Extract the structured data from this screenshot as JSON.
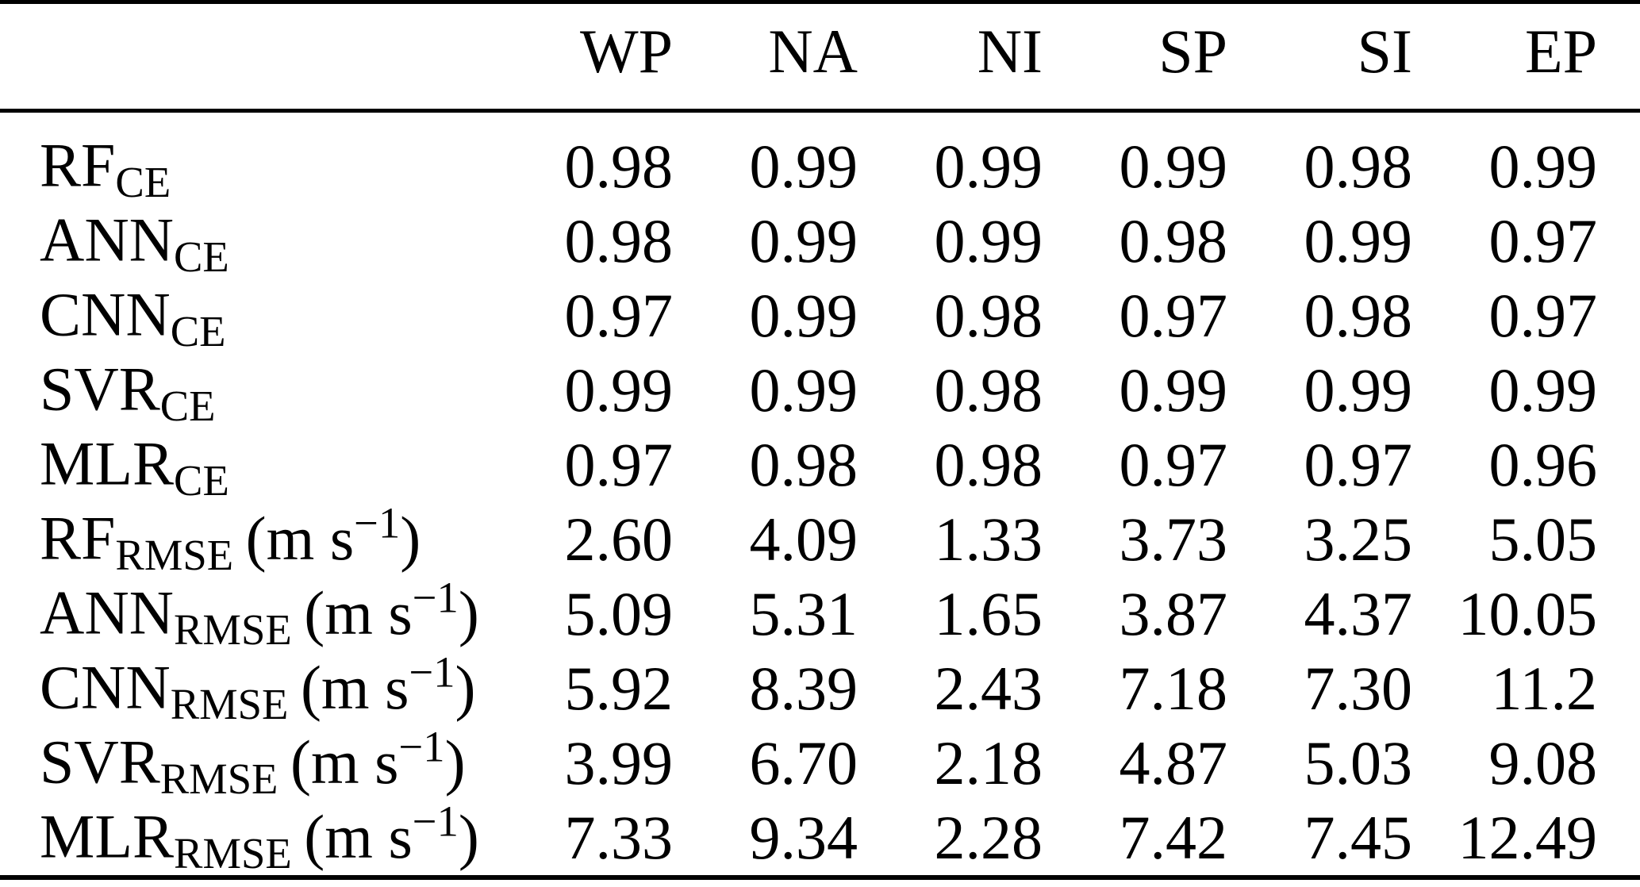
{
  "table": {
    "columns": [
      "WP",
      "NA",
      "NI",
      "SP",
      "SI",
      "EP"
    ],
    "rows": [
      {
        "base": "RF",
        "sub": "CE",
        "unit_pre": "",
        "unit_sup": "",
        "unit_post": "",
        "values": [
          "0.98",
          "0.99",
          "0.99",
          "0.99",
          "0.98",
          "0.99"
        ]
      },
      {
        "base": "ANN",
        "sub": "CE",
        "unit_pre": "",
        "unit_sup": "",
        "unit_post": "",
        "values": [
          "0.98",
          "0.99",
          "0.99",
          "0.98",
          "0.99",
          "0.97"
        ]
      },
      {
        "base": "CNN",
        "sub": "CE",
        "unit_pre": "",
        "unit_sup": "",
        "unit_post": "",
        "values": [
          "0.97",
          "0.99",
          "0.98",
          "0.97",
          "0.98",
          "0.97"
        ]
      },
      {
        "base": "SVR",
        "sub": "CE",
        "unit_pre": "",
        "unit_sup": "",
        "unit_post": "",
        "values": [
          "0.99",
          "0.99",
          "0.98",
          "0.99",
          "0.99",
          "0.99"
        ]
      },
      {
        "base": "MLR",
        "sub": "CE",
        "unit_pre": "",
        "unit_sup": "",
        "unit_post": "",
        "values": [
          "0.97",
          "0.98",
          "0.98",
          "0.97",
          "0.97",
          "0.96"
        ]
      },
      {
        "base": "RF",
        "sub": "RMSE",
        "unit_pre": "(m s",
        "unit_sup": "−1",
        "unit_post": ")",
        "values": [
          "2.60",
          "4.09",
          "1.33",
          "3.73",
          "3.25",
          "5.05"
        ]
      },
      {
        "base": "ANN",
        "sub": "RMSE",
        "unit_pre": "(m s",
        "unit_sup": "−1",
        "unit_post": ")",
        "values": [
          "5.09",
          "5.31",
          "1.65",
          "3.87",
          "4.37",
          "10.05"
        ]
      },
      {
        "base": "CNN",
        "sub": "RMSE",
        "unit_pre": "(m s",
        "unit_sup": "−1",
        "unit_post": ")",
        "values": [
          "5.92",
          "8.39",
          "2.43",
          "7.18",
          "7.30",
          "11.2"
        ]
      },
      {
        "base": "SVR",
        "sub": "RMSE",
        "unit_pre": "(m s",
        "unit_sup": "−1",
        "unit_post": ")",
        "values": [
          "3.99",
          "6.70",
          "2.18",
          "4.87",
          "5.03",
          "9.08"
        ]
      },
      {
        "base": "MLR",
        "sub": "RMSE",
        "unit_pre": "(m s",
        "unit_sup": "−1",
        "unit_post": ")",
        "values": [
          "7.33",
          "9.34",
          "2.28",
          "7.42",
          "7.45",
          "12.49"
        ]
      }
    ]
  },
  "chart_data": {
    "type": "table",
    "columns": [
      "",
      "WP",
      "NA",
      "NI",
      "SP",
      "SI",
      "EP"
    ],
    "rows": [
      [
        "RF_CE",
        0.98,
        0.99,
        0.99,
        0.99,
        0.98,
        0.99
      ],
      [
        "ANN_CE",
        0.98,
        0.99,
        0.99,
        0.98,
        0.99,
        0.97
      ],
      [
        "CNN_CE",
        0.97,
        0.99,
        0.98,
        0.97,
        0.98,
        0.97
      ],
      [
        "SVR_CE",
        0.99,
        0.99,
        0.98,
        0.99,
        0.99,
        0.99
      ],
      [
        "MLR_CE",
        0.97,
        0.98,
        0.98,
        0.97,
        0.97,
        0.96
      ],
      [
        "RF_RMSE (m s^-1)",
        2.6,
        4.09,
        1.33,
        3.73,
        3.25,
        5.05
      ],
      [
        "ANN_RMSE (m s^-1)",
        5.09,
        5.31,
        1.65,
        3.87,
        4.37,
        10.05
      ],
      [
        "CNN_RMSE (m s^-1)",
        5.92,
        8.39,
        2.43,
        7.18,
        7.3,
        11.2
      ],
      [
        "SVR_RMSE (m s^-1)",
        3.99,
        6.7,
        2.18,
        4.87,
        5.03,
        9.08
      ],
      [
        "MLR_RMSE (m s^-1)",
        7.33,
        9.34,
        2.28,
        7.42,
        7.45,
        12.49
      ]
    ]
  },
  "colors": {
    "background": "#ffffff",
    "text": "#000000",
    "rule": "#000000"
  }
}
